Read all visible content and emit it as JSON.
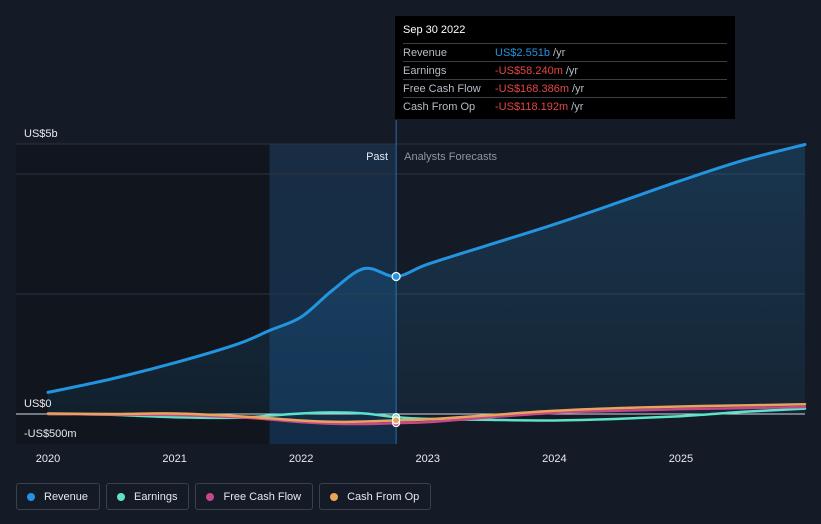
{
  "tooltip": {
    "date": "Sep 30 2022",
    "rows": [
      {
        "name": "Revenue",
        "value": "US$2.551b",
        "unit": "/yr",
        "sign": "pos"
      },
      {
        "name": "Earnings",
        "value": "-US$58.240m",
        "unit": "/yr",
        "sign": "neg"
      },
      {
        "name": "Free Cash Flow",
        "value": "-US$168.386m",
        "unit": "/yr",
        "sign": "neg"
      },
      {
        "name": "Cash From Op",
        "value": "-US$118.192m",
        "unit": "/yr",
        "sign": "neg"
      }
    ]
  },
  "regions": {
    "past": "Past",
    "forecast": "Analysts Forecasts"
  },
  "legend": [
    {
      "name": "Revenue",
      "color": "#2394df"
    },
    {
      "name": "Earnings",
      "color": "#5ee3c9"
    },
    {
      "name": "Free Cash Flow",
      "color": "#c6488a"
    },
    {
      "name": "Cash From Op",
      "color": "#e9a45b"
    }
  ],
  "chart_data": {
    "type": "line",
    "y_tick_labels": [
      "US$5b",
      "US$0",
      "-US$500m"
    ],
    "x_tick_labels": [
      "2020",
      "2021",
      "2022",
      "2023",
      "2024",
      "2025"
    ],
    "ylim": [
      -500,
      5000
    ],
    "xlim": [
      2020.0,
      2025.98
    ],
    "y_unit": "US$m",
    "highlight_x": 2022.75,
    "past_shade_start": 2021.75,
    "series": [
      {
        "name": "Revenue",
        "color": "#2394df",
        "x": [
          2020.0,
          2020.5,
          2021.0,
          2021.5,
          2021.75,
          2022.0,
          2022.25,
          2022.5,
          2022.75,
          2023.0,
          2023.5,
          2024.0,
          2024.5,
          2025.0,
          2025.5,
          2025.98
        ],
        "y": [
          400,
          650,
          950,
          1300,
          1550,
          1800,
          2300,
          2700,
          2551,
          2780,
          3150,
          3520,
          3920,
          4330,
          4710,
          5000
        ]
      },
      {
        "name": "Earnings",
        "color": "#5ee3c9",
        "x": [
          2020.0,
          2020.5,
          2021.0,
          2021.5,
          2021.75,
          2022.0,
          2022.25,
          2022.5,
          2022.75,
          2023.0,
          2023.5,
          2024.0,
          2024.5,
          2025.0,
          2025.5,
          2025.98
        ],
        "y": [
          0,
          -15,
          -60,
          -70,
          -30,
          10,
          30,
          10,
          -58,
          -90,
          -110,
          -120,
          -90,
          -40,
          40,
          100
        ]
      },
      {
        "name": "Free Cash Flow",
        "color": "#c6488a",
        "x": [
          2020.0,
          2020.5,
          2021.0,
          2021.5,
          2021.75,
          2022.0,
          2022.25,
          2022.5,
          2022.75,
          2023.0,
          2023.5,
          2024.0,
          2024.5,
          2025.0,
          2025.5,
          2025.98
        ],
        "y": [
          0,
          -10,
          -20,
          -60,
          -100,
          -150,
          -180,
          -185,
          -168,
          -150,
          -60,
          20,
          60,
          90,
          110,
          130
        ]
      },
      {
        "name": "Cash From Op",
        "color": "#e9a45b",
        "x": [
          2020.0,
          2020.5,
          2021.0,
          2021.5,
          2021.75,
          2022.0,
          2022.25,
          2022.5,
          2022.75,
          2023.0,
          2023.5,
          2024.0,
          2024.5,
          2025.0,
          2025.5,
          2025.98
        ],
        "y": [
          10,
          0,
          10,
          -40,
          -80,
          -120,
          -145,
          -140,
          -118,
          -100,
          -20,
          60,
          110,
          140,
          160,
          180
        ]
      }
    ]
  }
}
